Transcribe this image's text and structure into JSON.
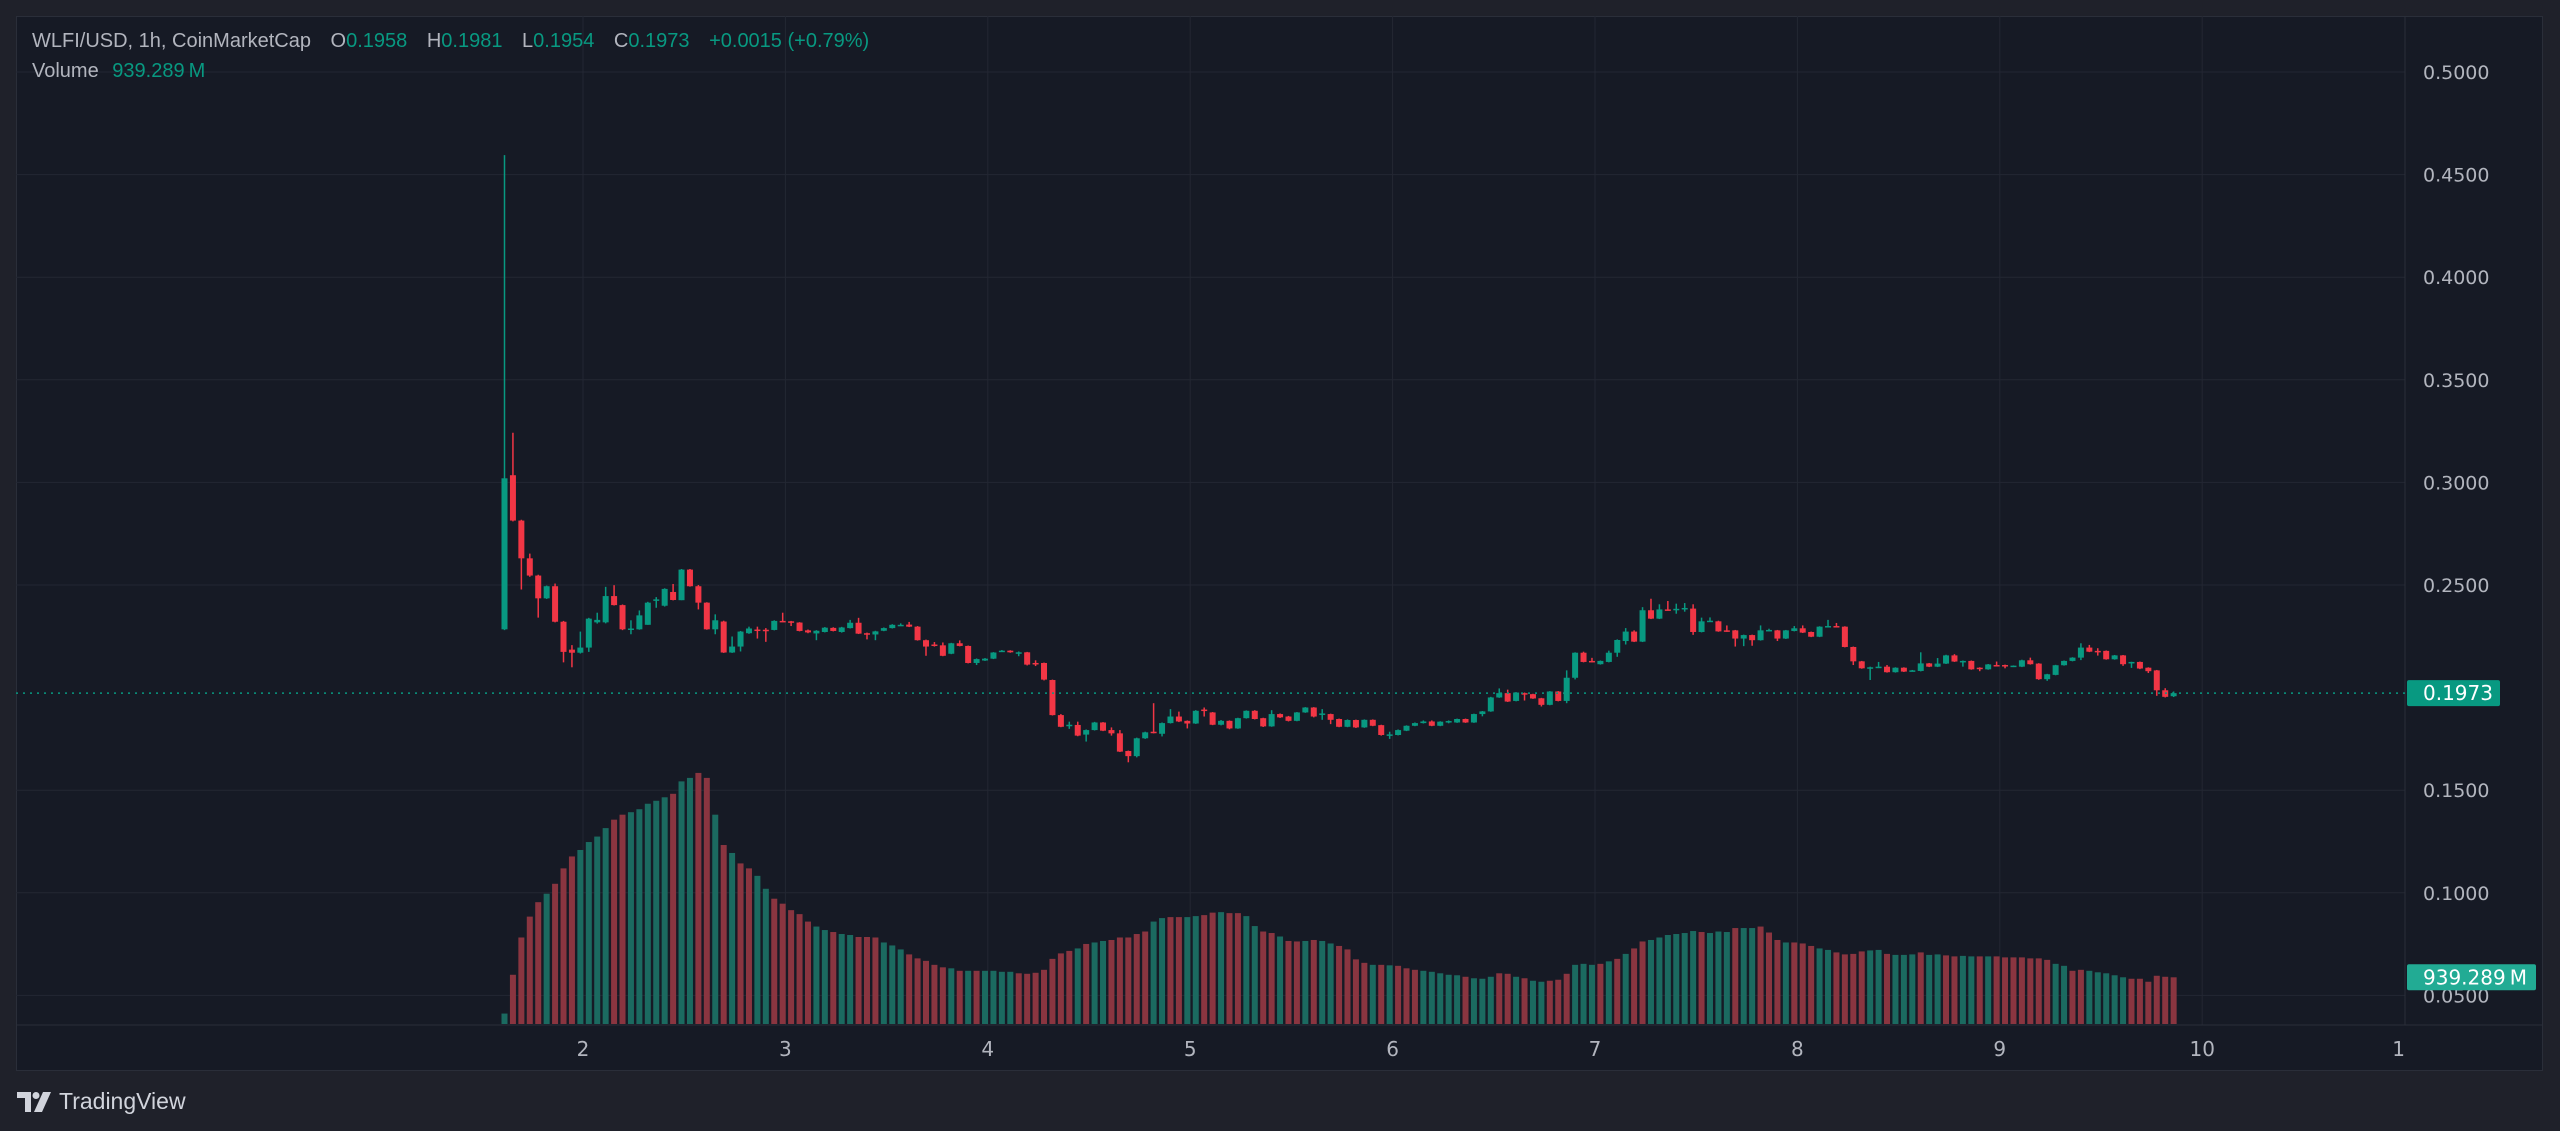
{
  "header": {
    "symbol": "WLFI/USD, 1h, CoinMarketCap",
    "open_label": "O",
    "open": "0.1958",
    "high_label": "H",
    "high": "0.1981",
    "low_label": "L",
    "low": "0.1954",
    "close_label": "C",
    "close": "0.1973",
    "change": "+0.0015 (+0.79%)",
    "volume_label": "Volume",
    "volume": "939.289 M"
  },
  "price_axis": {
    "ticks": [
      "0.5000",
      "0.4500",
      "0.4000",
      "0.3500",
      "0.3000",
      "0.2500",
      "0.1500",
      "0.1000",
      "0.0500"
    ],
    "current_price_tag": "0.1973",
    "current_volume_tag": "939.289 M"
  },
  "time_axis": {
    "ticks": [
      "2",
      "3",
      "4",
      "5",
      "6",
      "7",
      "8",
      "9",
      "10",
      "1"
    ]
  },
  "footer": {
    "brand": "TradingView",
    "logo_icon": "tradingview-logo-icon"
  },
  "colors": {
    "up": "#089981",
    "down": "#f23645",
    "volume_up": "#1b6a60",
    "volume_down": "#8a3540",
    "background": "#161a25",
    "grid": "#232733"
  },
  "chart_data": {
    "type": "candlestick",
    "interval": "1h",
    "price_range": [
      0.0365,
      0.5225
    ],
    "ohlc": [
      [
        0.2284,
        0.4595,
        0.228,
        0.302
      ],
      [
        0.3035,
        0.3242,
        0.281,
        0.2814
      ],
      [
        0.2814,
        0.2818,
        0.2478,
        0.263
      ],
      [
        0.263,
        0.2653,
        0.254,
        0.2546
      ],
      [
        0.2546,
        0.255,
        0.2341,
        0.2435
      ],
      [
        0.2435,
        0.2497,
        0.2432,
        0.2494
      ],
      [
        0.2494,
        0.2507,
        0.2318,
        0.2321
      ],
      [
        0.2321,
        0.2325,
        0.2123,
        0.2174
      ],
      [
        0.2185,
        0.2207,
        0.2099,
        0.217
      ],
      [
        0.217,
        0.2273,
        0.2166,
        0.2195
      ],
      [
        0.2195,
        0.234,
        0.2174,
        0.2336
      ],
      [
        0.2318,
        0.2365,
        0.2312,
        0.233
      ],
      [
        0.2318,
        0.2491,
        0.2313,
        0.2446
      ],
      [
        0.2446,
        0.2499,
        0.24,
        0.2402
      ],
      [
        0.2402,
        0.2405,
        0.228,
        0.2284
      ],
      [
        0.2281,
        0.2328,
        0.226,
        0.2288
      ],
      [
        0.2284,
        0.2376,
        0.2282,
        0.2352
      ],
      [
        0.2306,
        0.2418,
        0.2306,
        0.2414
      ],
      [
        0.2425,
        0.2441,
        0.2389,
        0.243
      ],
      [
        0.2399,
        0.2484,
        0.2395,
        0.2481
      ],
      [
        0.2466,
        0.2505,
        0.2425,
        0.2427
      ],
      [
        0.2426,
        0.2578,
        0.2426,
        0.2575
      ],
      [
        0.2575,
        0.2578,
        0.2492,
        0.2494
      ],
      [
        0.2494,
        0.25,
        0.2381,
        0.2414
      ],
      [
        0.2414,
        0.2416,
        0.2282,
        0.2284
      ],
      [
        0.2284,
        0.2357,
        0.226,
        0.2328
      ],
      [
        0.2322,
        0.2326,
        0.2169,
        0.2171
      ],
      [
        0.2171,
        0.2249,
        0.2169,
        0.22
      ],
      [
        0.22,
        0.2276,
        0.2176,
        0.2273
      ],
      [
        0.2265,
        0.2297,
        0.2262,
        0.2288
      ],
      [
        0.2283,
        0.2297,
        0.2239,
        0.228
      ],
      [
        0.2282,
        0.229,
        0.2223,
        0.2279
      ],
      [
        0.2281,
        0.2328,
        0.2279,
        0.2325
      ],
      [
        0.2325,
        0.2365,
        0.2319,
        0.2321
      ],
      [
        0.2323,
        0.2325,
        0.23,
        0.2318
      ],
      [
        0.2317,
        0.2319,
        0.2274,
        0.2276
      ],
      [
        0.2279,
        0.2283,
        0.2265,
        0.2269
      ],
      [
        0.2264,
        0.228,
        0.2231,
        0.2277
      ],
      [
        0.2271,
        0.2295,
        0.2269,
        0.2292
      ],
      [
        0.2291,
        0.2294,
        0.2274,
        0.2276
      ],
      [
        0.2271,
        0.2296,
        0.2268,
        0.2293
      ],
      [
        0.229,
        0.233,
        0.2288,
        0.2316
      ],
      [
        0.2316,
        0.234,
        0.2261,
        0.2263
      ],
      [
        0.2265,
        0.2268,
        0.2235,
        0.2263
      ],
      [
        0.2259,
        0.2277,
        0.2231,
        0.2274
      ],
      [
        0.2277,
        0.2293,
        0.2275,
        0.229
      ],
      [
        0.229,
        0.2309,
        0.2288,
        0.2306
      ],
      [
        0.2303,
        0.2313,
        0.23,
        0.2306
      ],
      [
        0.2307,
        0.232,
        0.2295,
        0.2297
      ],
      [
        0.2297,
        0.23,
        0.2229,
        0.2231
      ],
      [
        0.2231,
        0.2234,
        0.2155,
        0.22
      ],
      [
        0.221,
        0.2222,
        0.22,
        0.2206
      ],
      [
        0.2206,
        0.222,
        0.2153,
        0.2155
      ],
      [
        0.2165,
        0.2218,
        0.2163,
        0.2216
      ],
      [
        0.2216,
        0.223,
        0.2201,
        0.2203
      ],
      [
        0.2203,
        0.2205,
        0.2118,
        0.212
      ],
      [
        0.212,
        0.2142,
        0.211,
        0.2139
      ],
      [
        0.2132,
        0.2144,
        0.213,
        0.2141
      ],
      [
        0.2141,
        0.2173,
        0.2139,
        0.2171
      ],
      [
        0.2176,
        0.2183,
        0.2174,
        0.218
      ],
      [
        0.218,
        0.2182,
        0.217,
        0.2172
      ],
      [
        0.217,
        0.2176,
        0.2153,
        0.2172
      ],
      [
        0.2172,
        0.2174,
        0.2108,
        0.2112
      ],
      [
        0.212,
        0.2133,
        0.2105,
        0.2115
      ],
      [
        0.212,
        0.2122,
        0.2035,
        0.2039
      ],
      [
        0.2037,
        0.2039,
        0.1864,
        0.1866
      ],
      [
        0.1866,
        0.1871,
        0.1807,
        0.1809
      ],
      [
        0.1814,
        0.1834,
        0.1799,
        0.1819
      ],
      [
        0.1818,
        0.1834,
        0.1763,
        0.1766
      ],
      [
        0.1771,
        0.1796,
        0.1737,
        0.1793
      ],
      [
        0.1793,
        0.1833,
        0.1791,
        0.183
      ],
      [
        0.183,
        0.1832,
        0.1788,
        0.179
      ],
      [
        0.1793,
        0.1806,
        0.1766,
        0.1777
      ],
      [
        0.1777,
        0.1793,
        0.1686,
        0.1688
      ],
      [
        0.1691,
        0.1693,
        0.1636,
        0.1666
      ],
      [
        0.1666,
        0.1756,
        0.166,
        0.1753
      ],
      [
        0.1753,
        0.1785,
        0.175,
        0.1782
      ],
      [
        0.1785,
        0.1924,
        0.1777,
        0.1779
      ],
      [
        0.1775,
        0.183,
        0.1762,
        0.1827
      ],
      [
        0.1827,
        0.1895,
        0.1825,
        0.1859
      ],
      [
        0.1859,
        0.1883,
        0.1832,
        0.1835
      ],
      [
        0.1838,
        0.184,
        0.1801,
        0.1825
      ],
      [
        0.1825,
        0.189,
        0.1823,
        0.1887
      ],
      [
        0.1893,
        0.1903,
        0.1859,
        0.189
      ],
      [
        0.1879,
        0.1881,
        0.1817,
        0.1819
      ],
      [
        0.1819,
        0.1842,
        0.1816,
        0.1838
      ],
      [
        0.1838,
        0.184,
        0.1797,
        0.1801
      ],
      [
        0.1801,
        0.1853,
        0.1799,
        0.1851
      ],
      [
        0.1851,
        0.1889,
        0.1849,
        0.1887
      ],
      [
        0.1887,
        0.189,
        0.1845,
        0.1847
      ],
      [
        0.1851,
        0.1853,
        0.1808,
        0.1811
      ],
      [
        0.1811,
        0.189,
        0.1809,
        0.1871
      ],
      [
        0.1871,
        0.1874,
        0.1852,
        0.1855
      ],
      [
        0.1859,
        0.1862,
        0.1835,
        0.1838
      ],
      [
        0.1838,
        0.1881,
        0.1836,
        0.1879
      ],
      [
        0.1879,
        0.1905,
        0.1877,
        0.1903
      ],
      [
        0.1903,
        0.1905,
        0.1855,
        0.1859
      ],
      [
        0.1871,
        0.1895,
        0.1843,
        0.1874
      ],
      [
        0.1871,
        0.1873,
        0.1822,
        0.1843
      ],
      [
        0.1847,
        0.1849,
        0.1807,
        0.1809
      ],
      [
        0.1809,
        0.1845,
        0.1807,
        0.1842
      ],
      [
        0.1842,
        0.1844,
        0.1803,
        0.1806
      ],
      [
        0.1806,
        0.1845,
        0.1804,
        0.1843
      ],
      [
        0.1843,
        0.1845,
        0.1812,
        0.1814
      ],
      [
        0.1817,
        0.1819,
        0.1766,
        0.1769
      ],
      [
        0.1766,
        0.1785,
        0.175,
        0.1772
      ],
      [
        0.1769,
        0.1796,
        0.1767,
        0.1793
      ],
      [
        0.179,
        0.1816,
        0.1788,
        0.1814
      ],
      [
        0.1814,
        0.183,
        0.1812,
        0.1827
      ],
      [
        0.1827,
        0.184,
        0.1825,
        0.1835
      ],
      [
        0.1835,
        0.184,
        0.1812,
        0.1814
      ],
      [
        0.1814,
        0.1836,
        0.1812,
        0.1834
      ],
      [
        0.1834,
        0.184,
        0.1826,
        0.1837
      ],
      [
        0.183,
        0.1849,
        0.1828,
        0.1847
      ],
      [
        0.1847,
        0.1849,
        0.1828,
        0.183
      ],
      [
        0.183,
        0.1873,
        0.1828,
        0.1871
      ],
      [
        0.1871,
        0.1886,
        0.186,
        0.1884
      ],
      [
        0.1884,
        0.1955,
        0.1882,
        0.1952
      ],
      [
        0.1952,
        0.1996,
        0.195,
        0.1973
      ],
      [
        0.1973,
        0.199,
        0.193,
        0.1932
      ],
      [
        0.1935,
        0.1978,
        0.1933,
        0.1976
      ],
      [
        0.1973,
        0.1976,
        0.1937,
        0.1968
      ],
      [
        0.1968,
        0.197,
        0.1945,
        0.1947
      ],
      [
        0.1948,
        0.195,
        0.1908,
        0.1916
      ],
      [
        0.1916,
        0.1983,
        0.1914,
        0.1981
      ],
      [
        0.1981,
        0.1983,
        0.1933,
        0.1935
      ],
      [
        0.1935,
        0.2084,
        0.1924,
        0.2048
      ],
      [
        0.2048,
        0.2172,
        0.204,
        0.217
      ],
      [
        0.217,
        0.2175,
        0.2123,
        0.2125
      ],
      [
        0.213,
        0.2145,
        0.2123,
        0.2125
      ],
      [
        0.2114,
        0.2132,
        0.2112,
        0.213
      ],
      [
        0.2125,
        0.218,
        0.2123,
        0.217
      ],
      [
        0.217,
        0.2235,
        0.215,
        0.2232
      ],
      [
        0.2227,
        0.229,
        0.221,
        0.2273
      ],
      [
        0.2273,
        0.2279,
        0.2222,
        0.2224
      ],
      [
        0.2224,
        0.2392,
        0.2222,
        0.2377
      ],
      [
        0.2377,
        0.2433,
        0.2334,
        0.2336
      ],
      [
        0.2336,
        0.2406,
        0.2334,
        0.2381
      ],
      [
        0.2381,
        0.2422,
        0.2376,
        0.2378
      ],
      [
        0.2381,
        0.2409,
        0.236,
        0.2384
      ],
      [
        0.2384,
        0.2412,
        0.237,
        0.2388
      ],
      [
        0.2385,
        0.2406,
        0.2257,
        0.2271
      ],
      [
        0.2271,
        0.2341,
        0.2269,
        0.2323
      ],
      [
        0.2323,
        0.2342,
        0.232,
        0.2326
      ],
      [
        0.2323,
        0.2326,
        0.2272,
        0.2274
      ],
      [
        0.2279,
        0.2303,
        0.2272,
        0.2274
      ],
      [
        0.2279,
        0.2281,
        0.22,
        0.2239
      ],
      [
        0.2239,
        0.2258,
        0.2202,
        0.2256
      ],
      [
        0.2256,
        0.2258,
        0.2204,
        0.2231
      ],
      [
        0.2231,
        0.2303,
        0.2229,
        0.2279
      ],
      [
        0.2276,
        0.2287,
        0.2274,
        0.2281
      ],
      [
        0.2279,
        0.2281,
        0.2227,
        0.2239
      ],
      [
        0.2239,
        0.2281,
        0.2237,
        0.2279
      ],
      [
        0.2276,
        0.23,
        0.2274,
        0.2289
      ],
      [
        0.2289,
        0.2303,
        0.2266,
        0.2268
      ],
      [
        0.2271,
        0.2273,
        0.2246,
        0.2248
      ],
      [
        0.2248,
        0.2299,
        0.2246,
        0.2297
      ],
      [
        0.2297,
        0.233,
        0.2295,
        0.23
      ],
      [
        0.23,
        0.2315,
        0.2295,
        0.2297
      ],
      [
        0.2297,
        0.2299,
        0.2196,
        0.2198
      ],
      [
        0.2198,
        0.22,
        0.211,
        0.2128
      ],
      [
        0.2128,
        0.213,
        0.2092,
        0.2094
      ],
      [
        0.2094,
        0.2102,
        0.2037,
        0.2099
      ],
      [
        0.2099,
        0.2125,
        0.2095,
        0.2102
      ],
      [
        0.2102,
        0.211,
        0.2073,
        0.2075
      ],
      [
        0.2075,
        0.2099,
        0.2073,
        0.2097
      ],
      [
        0.2097,
        0.2099,
        0.2076,
        0.2078
      ],
      [
        0.2081,
        0.2086,
        0.2078,
        0.2084
      ],
      [
        0.2081,
        0.2172,
        0.2079,
        0.2118
      ],
      [
        0.2118,
        0.212,
        0.21,
        0.2102
      ],
      [
        0.2102,
        0.2144,
        0.21,
        0.2117
      ],
      [
        0.2117,
        0.216,
        0.2115,
        0.2157
      ],
      [
        0.2157,
        0.2163,
        0.2125,
        0.2127
      ],
      [
        0.2127,
        0.2132,
        0.2102,
        0.213
      ],
      [
        0.213,
        0.2132,
        0.2087,
        0.2089
      ],
      [
        0.2097,
        0.2099,
        0.208,
        0.2092
      ],
      [
        0.2089,
        0.2115,
        0.2087,
        0.2113
      ],
      [
        0.211,
        0.2127,
        0.2105,
        0.2107
      ],
      [
        0.211,
        0.2112,
        0.2094,
        0.2104
      ],
      [
        0.2104,
        0.2108,
        0.21,
        0.2107
      ],
      [
        0.2102,
        0.2136,
        0.21,
        0.2133
      ],
      [
        0.2133,
        0.2146,
        0.2112,
        0.2114
      ],
      [
        0.2117,
        0.2119,
        0.2038,
        0.2041
      ],
      [
        0.2041,
        0.2067,
        0.2033,
        0.2065
      ],
      [
        0.2062,
        0.2111,
        0.206,
        0.2109
      ],
      [
        0.2109,
        0.2132,
        0.2107,
        0.213
      ],
      [
        0.213,
        0.2148,
        0.2128,
        0.2146
      ],
      [
        0.2146,
        0.2216,
        0.2134,
        0.2195
      ],
      [
        0.2195,
        0.2208,
        0.2173,
        0.2175
      ],
      [
        0.2179,
        0.2192,
        0.2156,
        0.2176
      ],
      [
        0.2179,
        0.2181,
        0.2136,
        0.2138
      ],
      [
        0.2138,
        0.2159,
        0.2136,
        0.2157
      ],
      [
        0.2157,
        0.2159,
        0.2106,
        0.2114
      ],
      [
        0.2122,
        0.2126,
        0.2096,
        0.2125
      ],
      [
        0.2125,
        0.2127,
        0.209,
        0.2093
      ],
      [
        0.2097,
        0.2099,
        0.2071,
        0.208
      ],
      [
        0.2084,
        0.2086,
        0.196,
        0.1987
      ],
      [
        0.1987,
        0.1997,
        0.1952,
        0.1955
      ],
      [
        0.1958,
        0.1981,
        0.1954,
        0.1973
      ]
    ],
    "volume_millions": [
      210,
      990,
      1740,
      2160,
      2450,
      2620,
      2820,
      3130,
      3370,
      3500,
      3660,
      3770,
      3940,
      4110,
      4210,
      4260,
      4320,
      4430,
      4490,
      4560,
      4630,
      4880,
      4950,
      5050,
      4950,
      4210,
      3600,
      3440,
      3230,
      3130,
      2980,
      2720,
      2520,
      2420,
      2290,
      2210,
      2060,
      1960,
      1890,
      1850,
      1810,
      1790,
      1750,
      1750,
      1740,
      1640,
      1580,
      1500,
      1400,
      1320,
      1270,
      1190,
      1140,
      1120,
      1070,
      1070,
      1070,
      1070,
      1070,
      1050,
      1050,
      1020,
      1010,
      1030,
      1090,
      1310,
      1420,
      1470,
      1520,
      1610,
      1640,
      1670,
      1690,
      1740,
      1740,
      1810,
      1860,
      2060,
      2130,
      2150,
      2150,
      2150,
      2170,
      2190,
      2240,
      2250,
      2230,
      2230,
      2170,
      1970,
      1860,
      1830,
      1760,
      1670,
      1660,
      1670,
      1690,
      1670,
      1620,
      1570,
      1500,
      1300,
      1230,
      1190,
      1190,
      1180,
      1170,
      1120,
      1090,
      1070,
      1050,
      1020,
      990,
      980,
      950,
      920,
      910,
      950,
      1020,
      1010,
      950,
      920,
      870,
      850,
      870,
      890,
      1010,
      1190,
      1210,
      1190,
      1210,
      1260,
      1310,
      1410,
      1520,
      1660,
      1690,
      1740,
      1790,
      1810,
      1830,
      1870,
      1850,
      1830,
      1860,
      1850,
      1930,
      1930,
      1930,
      1960,
      1840,
      1690,
      1640,
      1640,
      1620,
      1570,
      1520,
      1490,
      1440,
      1400,
      1410,
      1460,
      1480,
      1490,
      1410,
      1390,
      1390,
      1400,
      1440,
      1390,
      1400,
      1380,
      1360,
      1370,
      1360,
      1360,
      1360,
      1360,
      1340,
      1340,
      1340,
      1320,
      1320,
      1290,
      1210,
      1170,
      1070,
      1090,
      1070,
      1040,
      1020,
      980,
      940,
      910,
      910,
      850,
      970,
      950,
      939.289
    ],
    "volume_direction": "udddduddduuuudduuuuuduuddududduuddddduuduuddduuudddddududuuuuddddddduduuddddduudduuddudduuddudduduuddddududdduuuuuduuudduduuddduuudududduuuuuuduuuduuddduddduudddduuduuuduudduududdddddduudduuuuudddddddududdddddu"
  }
}
